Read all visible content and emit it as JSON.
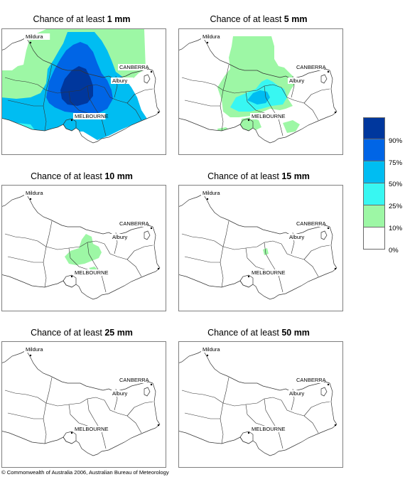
{
  "title_prefix": "Chance of at least",
  "legend": {
    "steps": [
      {
        "label": "90%",
        "color": "#00379d"
      },
      {
        "label": "75%",
        "color": "#0065e6"
      },
      {
        "label": "50%",
        "color": "#00bdf2"
      },
      {
        "label": "25%",
        "color": "#38f7f2"
      },
      {
        "label": "10%",
        "color": "#9df7a5"
      },
      {
        "label": "0%",
        "color": "#ffffff"
      }
    ]
  },
  "cities": [
    "Mildura",
    "CANBERRA",
    "Albury",
    "MELBOURNE"
  ],
  "panels": [
    {
      "amount": "1 mm"
    },
    {
      "amount": "5 mm"
    },
    {
      "amount": "10 mm"
    },
    {
      "amount": "15 mm"
    },
    {
      "amount": "25 mm"
    },
    {
      "amount": "50 mm"
    }
  ],
  "copyright": "© Commonwealth of Australia 2006, Australian Bureau of Meteorology"
}
